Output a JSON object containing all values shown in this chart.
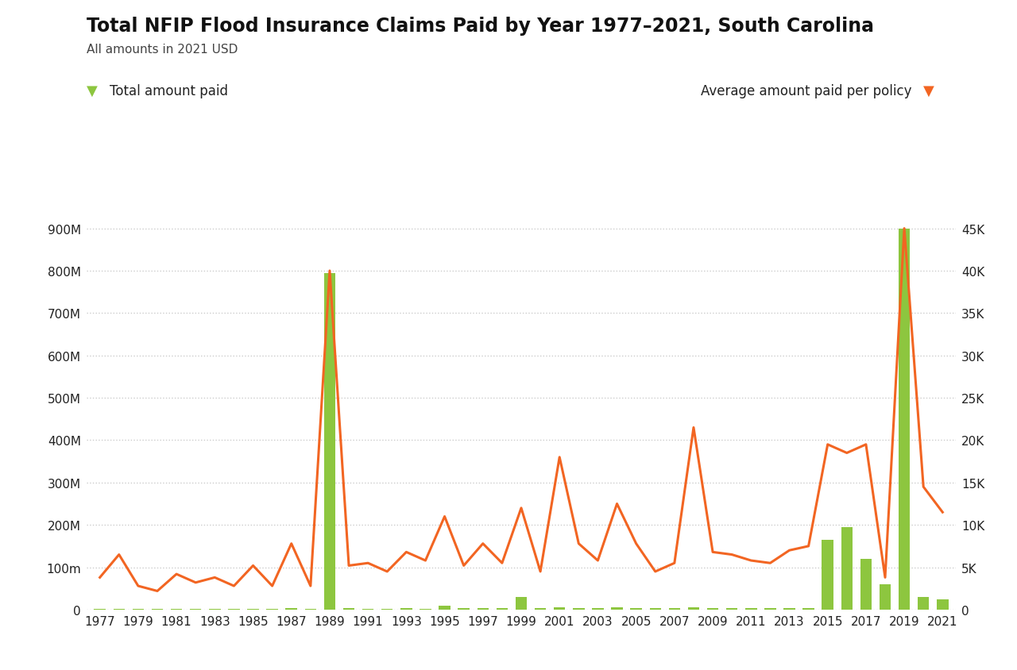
{
  "title": "Total NFIP Flood Insurance Claims Paid by Year 1977–2021, South Carolina",
  "subtitle": "All amounts in 2021 USD",
  "legend_left": "Total amount paid",
  "legend_right": "Average amount paid per policy",
  "years": [
    1977,
    1978,
    1979,
    1980,
    1981,
    1982,
    1983,
    1984,
    1985,
    1986,
    1987,
    1988,
    1989,
    1990,
    1991,
    1992,
    1993,
    1994,
    1995,
    1996,
    1997,
    1998,
    1999,
    2000,
    2001,
    2002,
    2003,
    2004,
    2005,
    2006,
    2007,
    2008,
    2009,
    2010,
    2011,
    2012,
    2013,
    2014,
    2015,
    2016,
    2017,
    2018,
    2019,
    2020,
    2021
  ],
  "total_paid": [
    2000000,
    2500000,
    2000000,
    1500000,
    2000000,
    1500000,
    2000000,
    1500000,
    2000000,
    1500000,
    3000000,
    1500000,
    795000000,
    3000000,
    2500000,
    2000000,
    3000000,
    2500000,
    10000000,
    3000000,
    4000000,
    3000000,
    30000000,
    3000000,
    5000000,
    4000000,
    4000000,
    6000000,
    4000000,
    3000000,
    3000000,
    5000000,
    4000000,
    4000000,
    4000000,
    4000000,
    3000000,
    4000000,
    165000000,
    195000000,
    120000000,
    60000000,
    900000000,
    30000000,
    25000000
  ],
  "avg_per_policy": [
    3800,
    6500,
    2800,
    2200,
    4200,
    3200,
    3800,
    2800,
    5200,
    2800,
    7800,
    2800,
    40000,
    5200,
    5500,
    4500,
    6800,
    5800,
    11000,
    5200,
    7800,
    5500,
    12000,
    4500,
    18000,
    7800,
    5800,
    12500,
    7800,
    4500,
    5500,
    21500,
    6800,
    6500,
    5800,
    5500,
    7000,
    7500,
    19500,
    18500,
    19500,
    3800,
    45000,
    14500,
    11500
  ],
  "bar_color": "#8dc63f",
  "line_color": "#f26522",
  "left_ylim": [
    0,
    950000000
  ],
  "right_ylim": [
    0,
    47500
  ],
  "left_yticks": [
    0,
    100000000,
    200000000,
    300000000,
    400000000,
    500000000,
    600000000,
    700000000,
    800000000,
    900000000
  ],
  "left_ytick_labels": [
    "0",
    "100m",
    "200M",
    "300M",
    "400M",
    "500M",
    "600M",
    "700M",
    "800M",
    "900M"
  ],
  "right_yticks": [
    0,
    5000,
    10000,
    15000,
    20000,
    25000,
    30000,
    35000,
    40000,
    45000
  ],
  "right_ytick_labels": [
    "0",
    "5K",
    "10K",
    "15K",
    "20K",
    "25K",
    "30K",
    "35K",
    "40K",
    "45K"
  ],
  "background_color": "#ffffff",
  "grid_color": "#cccccc",
  "title_fontsize": 17,
  "subtitle_fontsize": 11,
  "legend_fontsize": 12,
  "tick_fontsize": 11,
  "xlim": [
    1976.3,
    2021.7
  ]
}
